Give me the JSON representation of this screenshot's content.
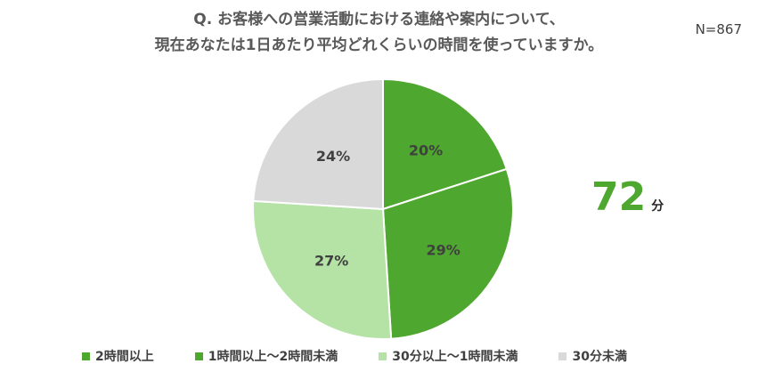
{
  "question": {
    "line1": "Q.  お客様への営業活動における連絡や案内について、",
    "line2": "現在あなたは1日あたり平均どれくらいの時間を使っていますか。"
  },
  "sample_size": "N=867",
  "average": {
    "value": "72",
    "unit": "分"
  },
  "chart_data": {
    "type": "pie",
    "title": "Q.  お客様への営業活動における連絡や案内について、現在あなたは1日あたり平均どれくらいの時間を使っていますか。",
    "start": "12 o'clock, clockwise",
    "categories": [
      "2時間以上",
      "1時間以上～2時間未満",
      "30分以上～1時間未満",
      "30分未満"
    ],
    "values": [
      20,
      29,
      27,
      24
    ],
    "labels": [
      "20%",
      "29%",
      "27%",
      "24%"
    ],
    "colors": [
      "#4ea72e",
      "#4ea72e",
      "#b5e3a6",
      "#d9d9d9"
    ],
    "legend_position": "bottom"
  }
}
